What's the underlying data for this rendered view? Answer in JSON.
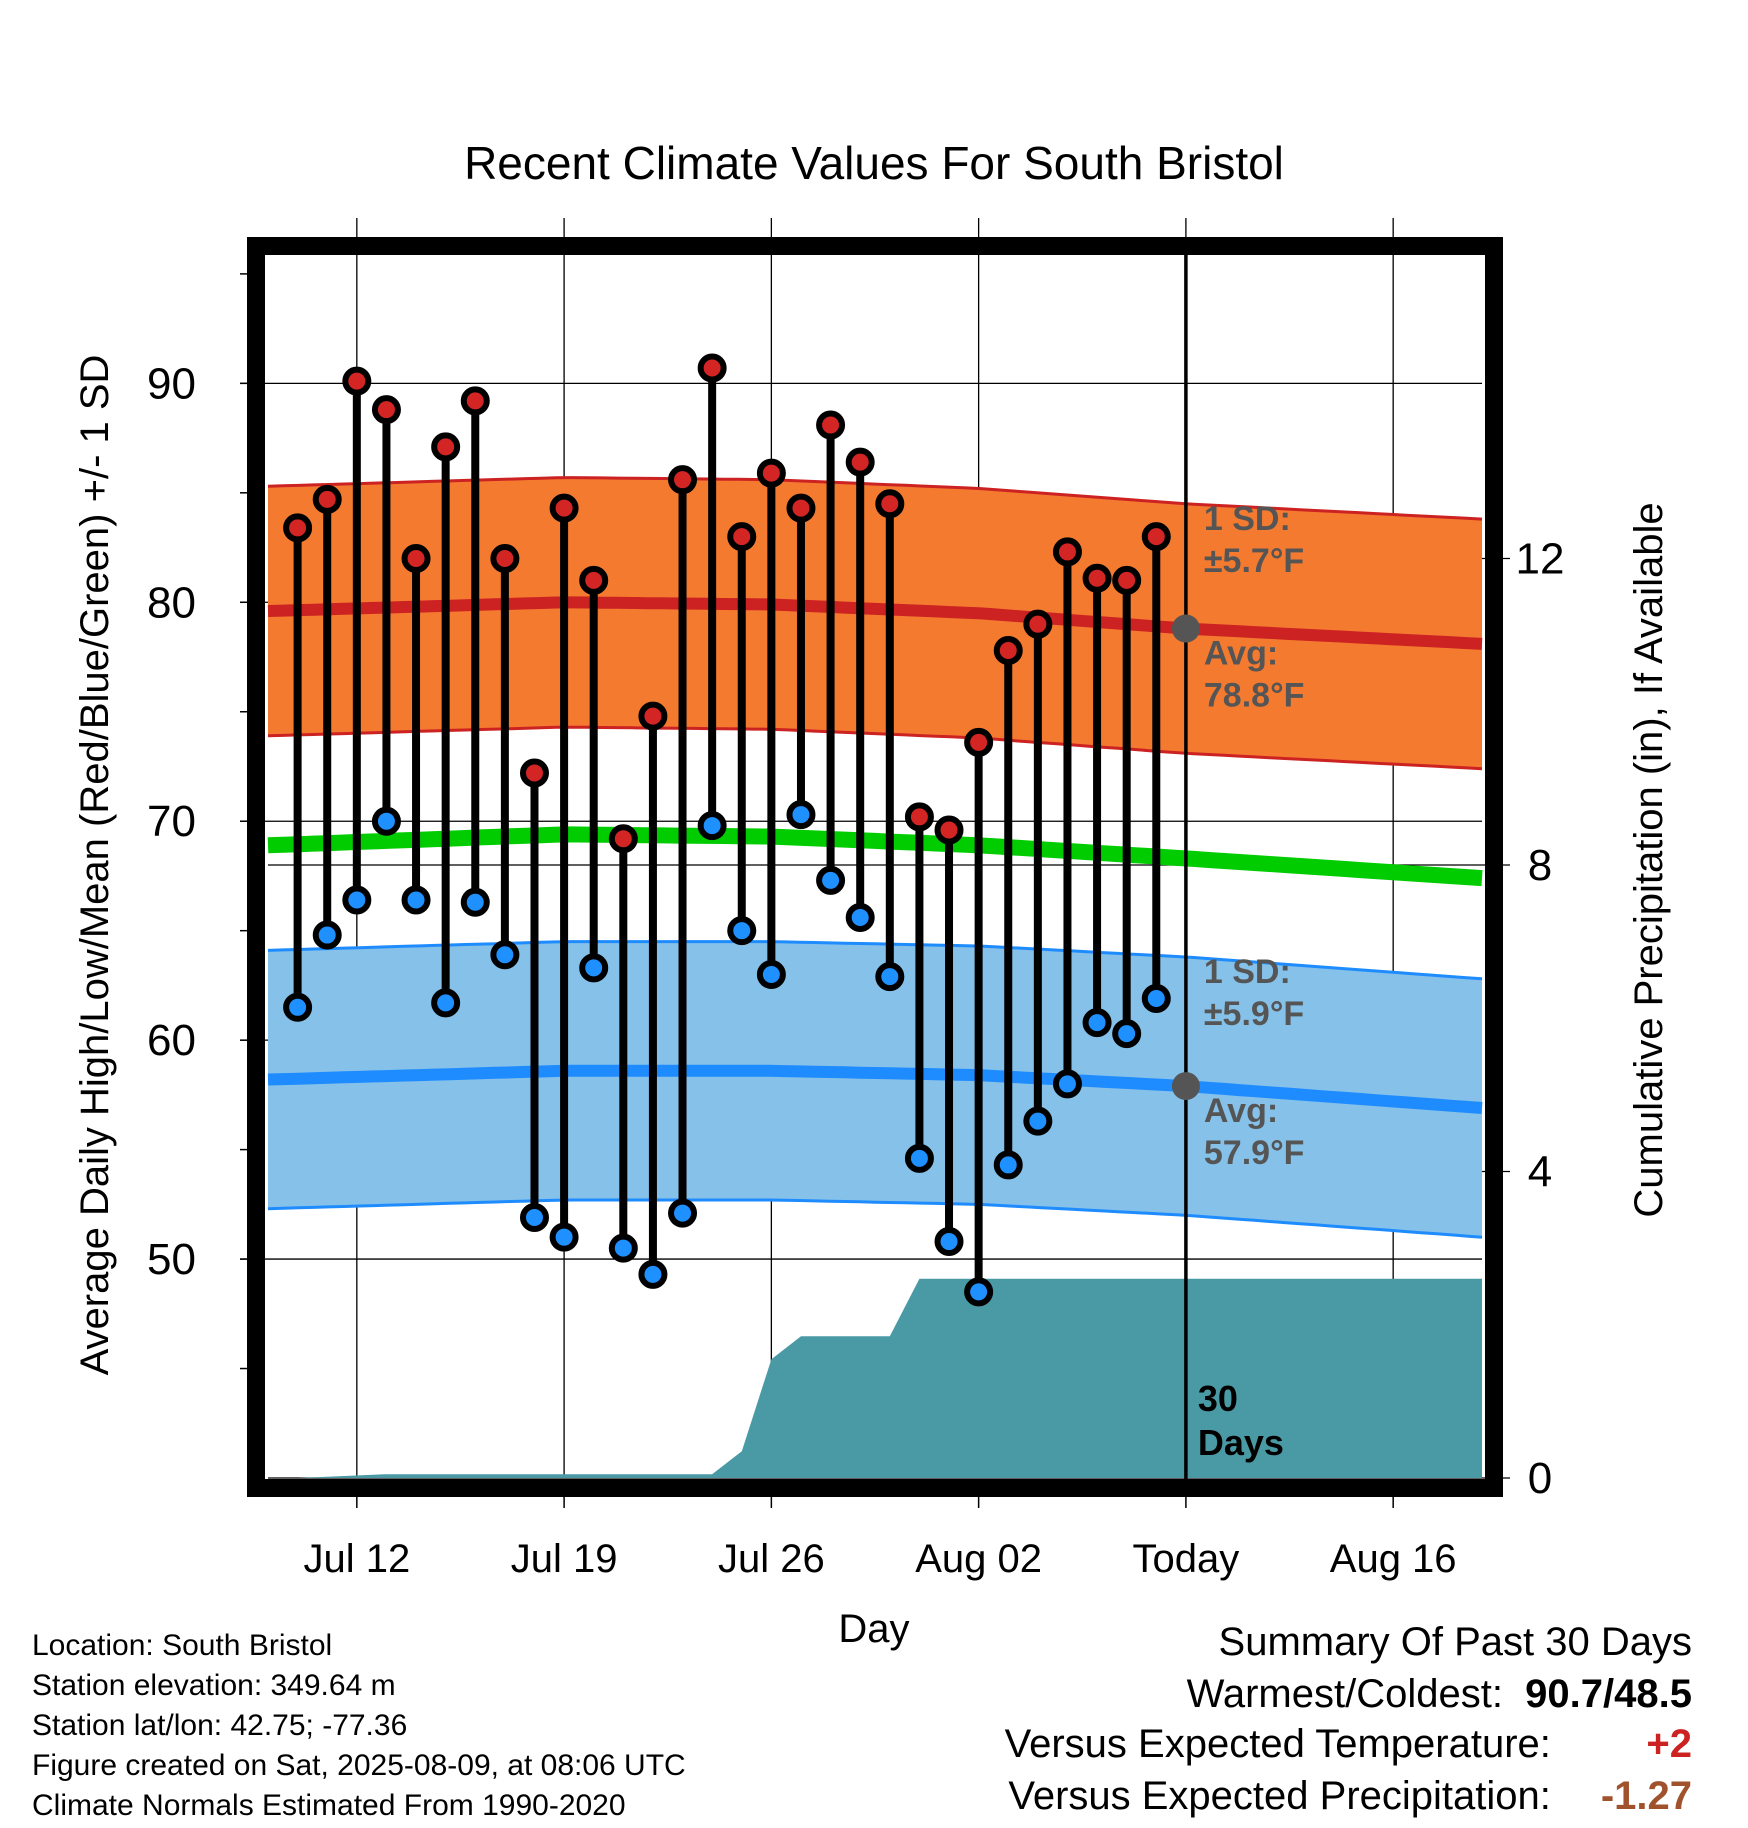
{
  "title": "Recent Climate Values For South Bristol",
  "chart_data": {
    "type": "range-dot",
    "xlabel": "Day",
    "ylabel_left": "Average Daily High/Low/Mean (Red/Blue/Green) +/- 1 SD",
    "ylabel_right": "Cumulative Precipitation (in), If Available",
    "x_tick_labels": [
      "Jul 12",
      "Jul 19",
      "Jul 26",
      "Aug 02",
      "Today",
      "Aug 16"
    ],
    "x_tick_dates": [
      "2025-07-12",
      "2025-07-19",
      "2025-07-26",
      "2025-08-02",
      "2025-08-09",
      "2025-08-16"
    ],
    "xlim": [
      "2025-07-09",
      "2025-08-19"
    ],
    "ylim_left": [
      40,
      96
    ],
    "y_ticks_left": [
      50,
      60,
      70,
      80,
      90
    ],
    "ylim_right": [
      0,
      16
    ],
    "y_ticks_right": [
      0,
      4,
      8,
      12
    ],
    "grid": true,
    "today": "2025-08-09",
    "days": [
      "2025-07-10",
      "2025-07-11",
      "2025-07-12",
      "2025-07-13",
      "2025-07-14",
      "2025-07-15",
      "2025-07-16",
      "2025-07-17",
      "2025-07-18",
      "2025-07-19",
      "2025-07-20",
      "2025-07-21",
      "2025-07-22",
      "2025-07-23",
      "2025-07-24",
      "2025-07-25",
      "2025-07-26",
      "2025-07-27",
      "2025-07-28",
      "2025-07-29",
      "2025-07-30",
      "2025-07-31",
      "2025-08-01",
      "2025-08-02",
      "2025-08-03",
      "2025-08-04",
      "2025-08-05",
      "2025-08-06",
      "2025-08-07",
      "2025-08-08"
    ],
    "highs": [
      83.4,
      84.7,
      90.1,
      88.8,
      82.0,
      87.1,
      89.2,
      82.0,
      72.2,
      84.3,
      81.0,
      69.2,
      74.8,
      85.6,
      90.7,
      83.0,
      85.9,
      84.3,
      88.1,
      86.4,
      84.5,
      70.2,
      69.6,
      73.6,
      77.8,
      79.0,
      82.3,
      81.1,
      81.0,
      83.0
    ],
    "lows": [
      61.5,
      64.8,
      66.4,
      70.0,
      66.4,
      61.7,
      66.3,
      63.9,
      51.9,
      51.0,
      63.3,
      50.5,
      49.3,
      52.1,
      69.8,
      65.0,
      63.0,
      70.3,
      67.3,
      65.6,
      62.9,
      54.6,
      50.8,
      48.5,
      54.3,
      56.3,
      58.0,
      60.8,
      60.3,
      61.9
    ],
    "normal_dates": [
      "2025-07-09",
      "2025-07-19",
      "2025-07-26",
      "2025-08-02",
      "2025-08-09",
      "2025-08-19"
    ],
    "normal_high": [
      79.6,
      80.0,
      79.9,
      79.5,
      78.8,
      78.1
    ],
    "normal_high_sd": 5.7,
    "normal_low": [
      58.2,
      58.6,
      58.6,
      58.4,
      57.9,
      56.9
    ],
    "normal_low_sd": 5.9,
    "normal_mean": [
      68.9,
      69.4,
      69.3,
      68.9,
      68.3,
      67.4
    ],
    "precip_dates": [
      "2025-07-10",
      "2025-07-13",
      "2025-07-24",
      "2025-07-25",
      "2025-07-26",
      "2025-07-27",
      "2025-07-30",
      "2025-07-31",
      "2025-08-19"
    ],
    "precip_cum": [
      0.0,
      0.05,
      0.05,
      0.35,
      1.55,
      1.85,
      1.85,
      2.6,
      2.6
    ],
    "annotations": {
      "high_sd": [
        "1 SD:",
        "±5.7°F"
      ],
      "high_avg": [
        "Avg:",
        "78.8°F"
      ],
      "low_sd": [
        "1 SD:",
        "±5.9°F"
      ],
      "low_avg": [
        "Avg:",
        "57.9°F"
      ],
      "period": [
        "30",
        "Days"
      ]
    },
    "colors": {
      "high_band": "#f47a30",
      "high_line": "#cc2222",
      "low_band": "#85c1e9",
      "low_line": "#1e8cff",
      "mean_line": "#00cc00",
      "precip": "#4a9aa5",
      "annotation": "#555555"
    }
  },
  "info": {
    "location": "Location: South Bristol",
    "elevation": "Station elevation: 349.64 m",
    "latlon": "Station lat/lon: 42.75; -77.36",
    "created": "Figure created on Sat, 2025-08-09, at 08:06 UTC",
    "normals": "Climate Normals Estimated From 1990-2020"
  },
  "summary": {
    "heading": "Summary Of Past 30 Days",
    "warm_cold_label": "Warmest/Coldest:",
    "warm_cold_value": "90.7/48.5",
    "temp_label": "Versus Expected Temperature:",
    "temp_value": "+2",
    "precip_label": "Versus Expected Precipitation:",
    "precip_value": "-1.27"
  }
}
